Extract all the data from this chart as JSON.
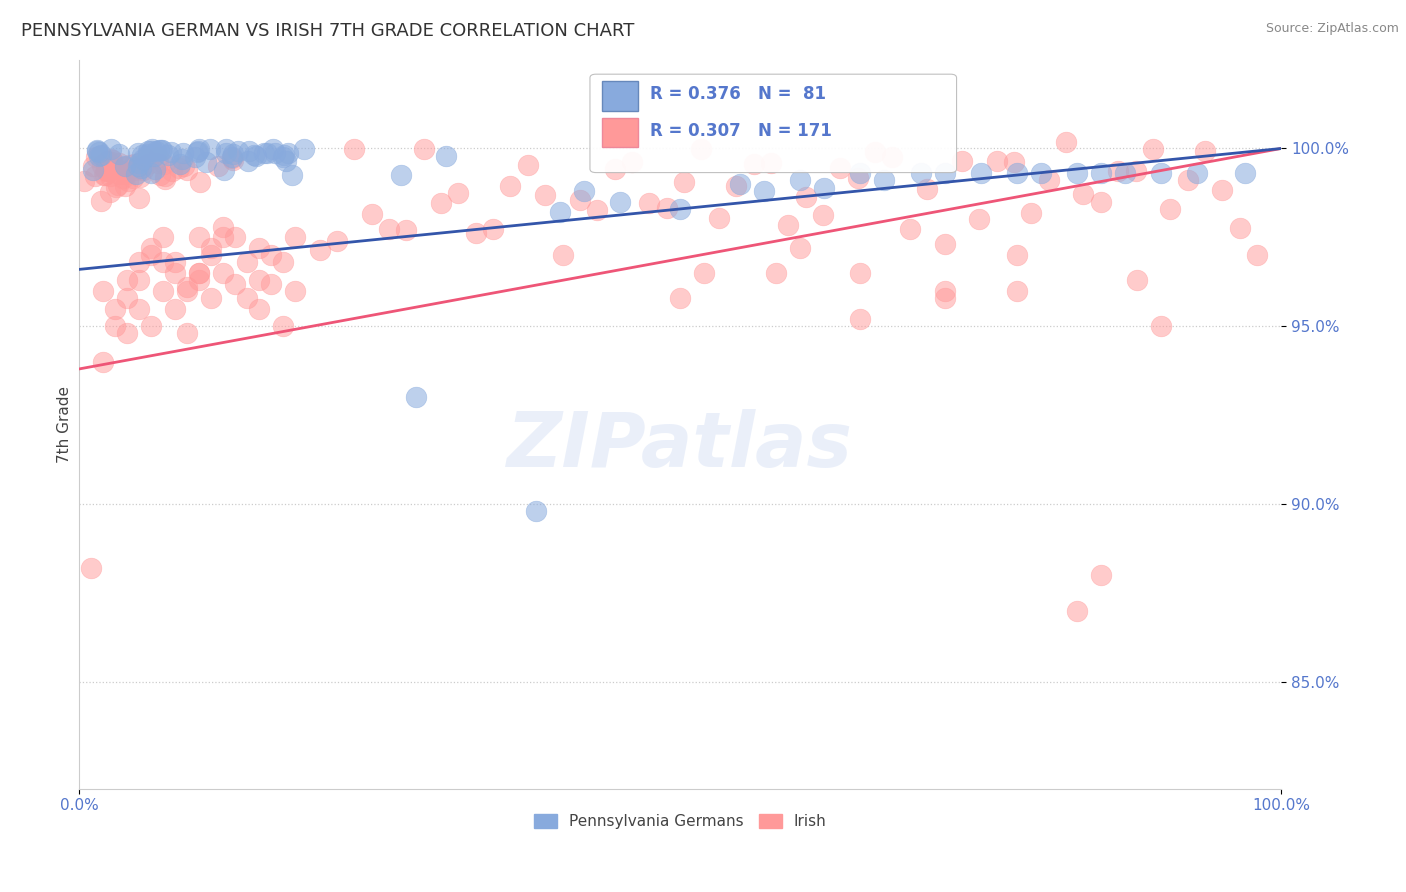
{
  "title": "PENNSYLVANIA GERMAN VS IRISH 7TH GRADE CORRELATION CHART",
  "source_text": "Source: ZipAtlas.com",
  "ylabel": "7th Grade",
  "xlim": [
    0.0,
    1.0
  ],
  "ylim": [
    0.82,
    1.025
  ],
  "yticks": [
    0.85,
    0.9,
    0.95,
    1.0
  ],
  "ytick_labels": [
    "85.0%",
    "90.0%",
    "95.0%",
    "100.0%"
  ],
  "xtick_labels": [
    "0.0%",
    "100.0%"
  ],
  "blue_R": 0.376,
  "blue_N": 81,
  "pink_R": 0.307,
  "pink_N": 171,
  "blue_color": "#88AADD",
  "pink_color": "#FF9999",
  "blue_line_color": "#3355AA",
  "pink_line_color": "#EE5577",
  "legend_label_blue": "Pennsylvania Germans",
  "legend_label_pink": "Irish",
  "axis_color": "#5577CC",
  "watermark": "ZIPatlas",
  "grid_color": "#CCCCCC",
  "title_color": "#333333",
  "source_color": "#888888"
}
